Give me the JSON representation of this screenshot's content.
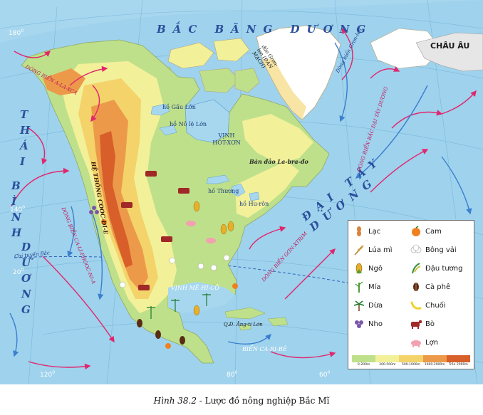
{
  "map": {
    "oceans": {
      "arctic": "BẮC BĂNG DƯƠNG",
      "pacific_col1": [
        "T",
        "H",
        "Á",
        "I"
      ],
      "pacific_col2": [
        "B",
        "Ì",
        "N",
        "H"
      ],
      "pacific_col3": [
        "D",
        "Ư",
        "Ơ",
        "N",
        "G"
      ],
      "atlantic": "ĐẠI TÂY DƯƠNG"
    },
    "regions": {
      "europe": "CHÂU ÂU",
      "greenland": "đảo Grơn-len (ĐAN MẠCH)",
      "labrador": "Bán đảo La-bra-đo",
      "cordillera": "HỆ THỐNG COOC-ĐI-E",
      "antilles": "Q.Đ. Ăng-ti Lớn"
    },
    "waters": {
      "gau_lon": "hồ Gấu Lớn",
      "no_le_lon": "hồ Nô lệ Lớn",
      "hudson": "VỊNH HÓT-XƠN",
      "thuong": "hồ Thượng",
      "huron": "hồ Hu-rôn",
      "mexico": "VỊNH MÊ-HI-CÔ",
      "caribbean": "BIỂN CA-RI-BÊ"
    },
    "currents": {
      "alaska": "DÒNG BIỂN A-LA-XCA",
      "california": "DÒNG BIỂN CA-LI-PHOOC-NI-A",
      "gulfstream": "DÒNG BIỂN GƠN-XTRIM",
      "north_atlantic": "DÒNG BIỂN BẮC ĐẠI TÂY DƯƠNG",
      "greenland": "Dòng biển Grơn-len"
    },
    "lines": {
      "tropic": "Chí tuyến Bắc"
    },
    "degrees": {
      "d180": "180",
      "d140": "140",
      "d20": "20",
      "d120": "120",
      "d80": "80",
      "d60": "60",
      "sup": "0"
    }
  },
  "legend": {
    "items": [
      {
        "label": "Lạc",
        "icon": "peanut-icon"
      },
      {
        "label": "Cam",
        "icon": "orange-icon"
      },
      {
        "label": "Lúa mì",
        "icon": "wheat-icon"
      },
      {
        "label": "Bông vải",
        "icon": "cotton-icon"
      },
      {
        "label": "Ngô",
        "icon": "corn-icon"
      },
      {
        "label": "Đậu tương",
        "icon": "soybean-icon"
      },
      {
        "label": "Mía",
        "icon": "sugarcane-icon"
      },
      {
        "label": "Cà phê",
        "icon": "coffee-icon"
      },
      {
        "label": "Dừa",
        "icon": "coconut-icon"
      },
      {
        "label": "Chuối",
        "icon": "banana-icon"
      },
      {
        "label": "Bò",
        "icon": "cattle-icon"
      },
      {
        "label": "Nho",
        "icon": "grape-icon"
      },
      {
        "label": "Lợn",
        "icon": "pig-icon"
      }
    ],
    "elevation": [
      {
        "label": "0-200m",
        "color": "#bfe08a"
      },
      {
        "label": "200-500m",
        "color": "#f3f09a"
      },
      {
        "label": "500-1000m",
        "color": "#f3d36a"
      },
      {
        "label": "1000-2000m",
        "color": "#ec9a4a"
      },
      {
        "label": "Trên 2000m",
        "color": "#d85f2a"
      }
    ]
  },
  "caption": {
    "number": "Hình 38.2",
    "title": " - Lược đồ nông nghiệp Bắc Mĩ"
  },
  "colors": {
    "ocean": "#a7d7ef",
    "ocean_deep": "#7cc3e6",
    "lowland": "#bfe08a",
    "upland": "#f3f09a",
    "plateau": "#f3d36a",
    "mountain": "#ec9a4a",
    "high_mountain": "#d85f2a",
    "ice": "#ffffff",
    "warm_current": "#e0266e",
    "cold_current": "#3a7fd0"
  }
}
